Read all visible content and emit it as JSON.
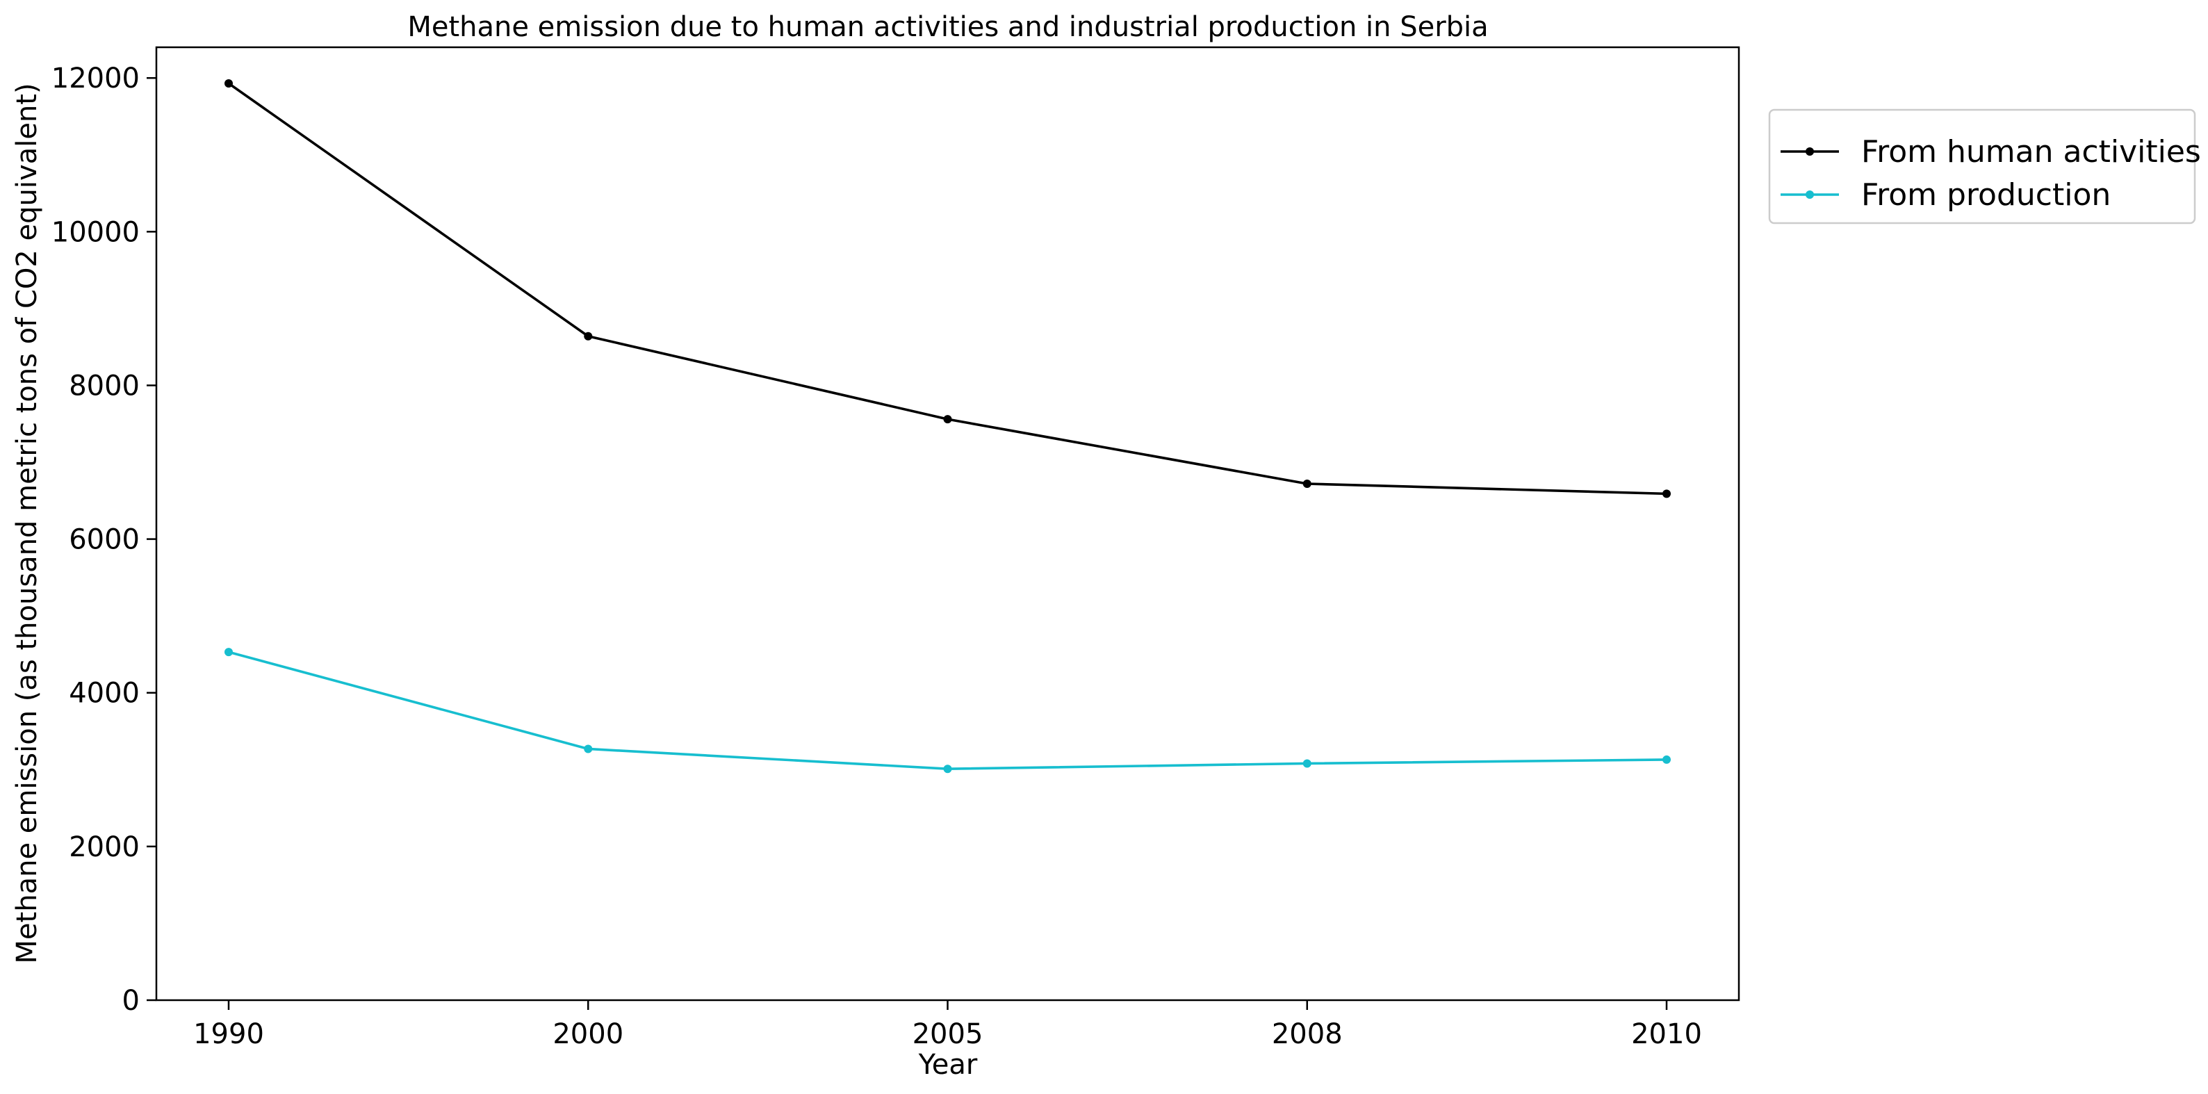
{
  "chart_data": {
    "type": "line",
    "title": "Methane emission due to human activities and industrial production in Serbia",
    "xlabel": "Year",
    "ylabel": "Methane emission (as thousand metric tons of CO2 equivalent)",
    "categories": [
      "1990",
      "2000",
      "2005",
      "2008",
      "2010"
    ],
    "ylim": [
      0,
      12400
    ],
    "yticks": [
      0,
      2000,
      4000,
      6000,
      8000,
      10000,
      12000
    ],
    "grid": false,
    "legend_position": "outside-top-right",
    "series": [
      {
        "name": "From human activities",
        "color": "#000000",
        "values": [
          11930,
          8640,
          7560,
          6720,
          6590
        ]
      },
      {
        "name": "From production",
        "color": "#17becf",
        "values": [
          4530,
          3270,
          3010,
          3080,
          3130
        ]
      }
    ]
  }
}
